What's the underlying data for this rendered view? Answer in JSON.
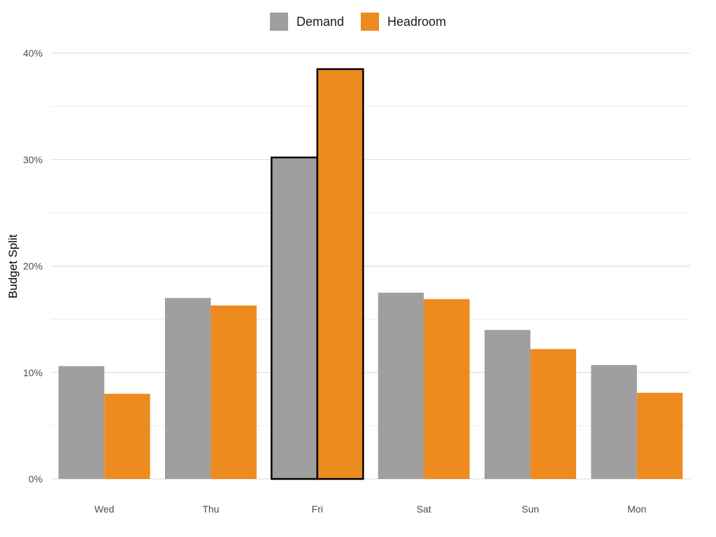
{
  "chart_data": {
    "type": "bar",
    "title": "",
    "xlabel": "",
    "ylabel": "Budget Split",
    "categories": [
      "Wed",
      "Thu",
      "Fri",
      "Sat",
      "Sun",
      "Mon"
    ],
    "series": [
      {
        "name": "Demand",
        "color": "#a09e9e",
        "values": [
          10.6,
          17.0,
          30.2,
          17.5,
          14.0,
          10.7
        ]
      },
      {
        "name": "Headroom",
        "color": "#ee8b1f",
        "values": [
          8.0,
          16.3,
          38.5,
          16.9,
          12.2,
          8.1
        ]
      }
    ],
    "highlighted_category": "Fri",
    "ylim": [
      0,
      40
    ],
    "yticks": [
      "0%",
      "10%",
      "20%",
      "30%",
      "40%"
    ],
    "grid": true,
    "legend_position": "top"
  }
}
